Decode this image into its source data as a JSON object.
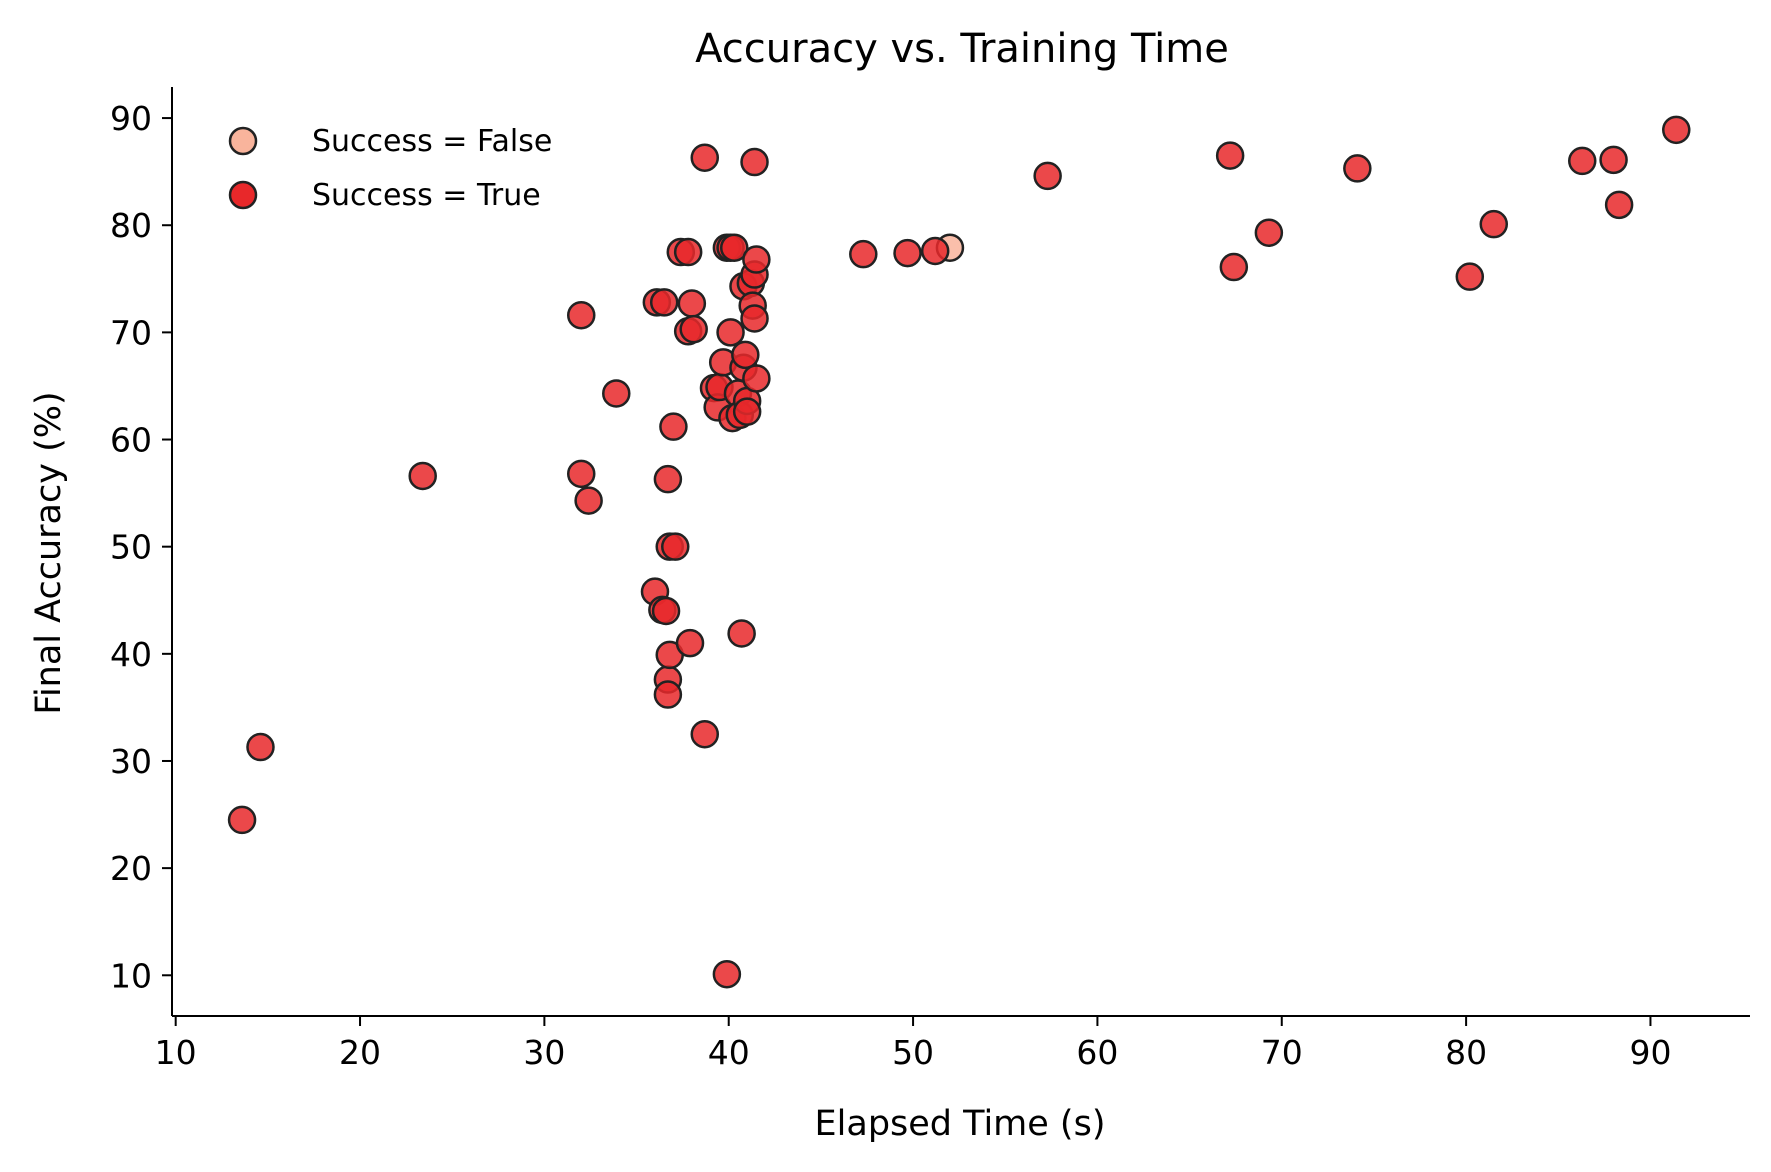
{
  "chart_data": {
    "type": "scatter",
    "title": "Accuracy vs. Training Time",
    "xlabel": "Elapsed Time (s)",
    "ylabel": "Final Accuracy (%)",
    "xlim": [
      9.8,
      95.4
    ],
    "ylim": [
      6.2,
      92.9
    ],
    "xticks": [
      10,
      20,
      30,
      40,
      50,
      60,
      70,
      80,
      90
    ],
    "yticks": [
      10,
      20,
      30,
      40,
      50,
      60,
      70,
      80,
      90
    ],
    "grid": false,
    "legend_position": "top-left",
    "series": [
      {
        "name": "Success = False",
        "color": "#f9b49c",
        "edge": "#222222",
        "points": [
          [
            52.0,
            77.9
          ]
        ]
      },
      {
        "name": "Success = True",
        "color": "#e8282a",
        "edge": "#222222",
        "points": [
          [
            13.6,
            24.5
          ],
          [
            14.6,
            31.3
          ],
          [
            23.4,
            56.6
          ],
          [
            32.0,
            71.6
          ],
          [
            32.0,
            56.8
          ],
          [
            32.4,
            54.3
          ],
          [
            33.9,
            64.3
          ],
          [
            36.0,
            45.8
          ],
          [
            36.1,
            72.8
          ],
          [
            36.5,
            72.8
          ],
          [
            36.4,
            44.1
          ],
          [
            36.6,
            44.0
          ],
          [
            36.7,
            56.3
          ],
          [
            36.7,
            37.6
          ],
          [
            36.7,
            36.2
          ],
          [
            36.8,
            39.9
          ],
          [
            36.8,
            50.0
          ],
          [
            37.0,
            61.2
          ],
          [
            37.1,
            50.0
          ],
          [
            37.4,
            77.5
          ],
          [
            37.8,
            77.5
          ],
          [
            37.8,
            70.1
          ],
          [
            37.9,
            41.0
          ],
          [
            38.0,
            72.7
          ],
          [
            38.1,
            70.3
          ],
          [
            38.7,
            86.3
          ],
          [
            38.7,
            32.5
          ],
          [
            39.2,
            64.8
          ],
          [
            39.4,
            63.0
          ],
          [
            39.5,
            64.9
          ],
          [
            39.7,
            67.2
          ],
          [
            39.9,
            77.9
          ],
          [
            39.9,
            10.1
          ],
          [
            40.1,
            77.9
          ],
          [
            40.1,
            70.0
          ],
          [
            40.2,
            62.0
          ],
          [
            40.3,
            77.9
          ],
          [
            40.5,
            64.3
          ],
          [
            40.6,
            62.3
          ],
          [
            40.7,
            41.9
          ],
          [
            40.8,
            74.3
          ],
          [
            40.8,
            66.7
          ],
          [
            40.9,
            67.9
          ],
          [
            41.0,
            63.6
          ],
          [
            41.0,
            62.6
          ],
          [
            41.2,
            74.6
          ],
          [
            41.3,
            72.5
          ],
          [
            41.4,
            85.9
          ],
          [
            41.4,
            75.4
          ],
          [
            41.4,
            71.3
          ],
          [
            41.5,
            76.8
          ],
          [
            41.5,
            65.7
          ],
          [
            47.3,
            77.3
          ],
          [
            49.7,
            77.4
          ],
          [
            51.2,
            77.6
          ],
          [
            57.3,
            84.6
          ],
          [
            67.2,
            86.5
          ],
          [
            67.4,
            76.1
          ],
          [
            69.3,
            79.3
          ],
          [
            74.1,
            85.3
          ],
          [
            80.2,
            75.2
          ],
          [
            81.5,
            80.1
          ],
          [
            86.3,
            86.0
          ],
          [
            88.0,
            86.1
          ],
          [
            88.3,
            81.9
          ],
          [
            91.4,
            88.9
          ]
        ]
      }
    ]
  }
}
